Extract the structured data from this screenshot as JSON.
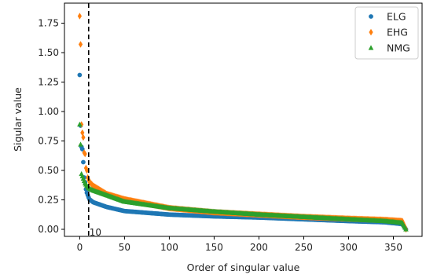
{
  "chart_data": {
    "type": "scatter",
    "title": "",
    "xlabel": "Order of singular value",
    "ylabel": "Sigular value",
    "xlim": [
      -17,
      382
    ],
    "ylim": [
      -0.06,
      1.92
    ],
    "xticks": [
      0,
      50,
      100,
      150,
      200,
      250,
      300,
      350
    ],
    "yticks": [
      0.0,
      0.25,
      0.5,
      0.75,
      1.0,
      1.25,
      1.5,
      1.75
    ],
    "xtick_labels": [
      "0",
      "50",
      "100",
      "150",
      "200",
      "250",
      "300",
      "350"
    ],
    "ytick_labels": [
      "0.00",
      "0.25",
      "0.50",
      "0.75",
      "1.00",
      "1.25",
      "1.50",
      "1.75"
    ],
    "grid": false,
    "legend_position": "top-right",
    "n_points": 365,
    "vline": {
      "x": 10,
      "style": "dashed",
      "color": "#000000",
      "label": "10"
    },
    "series": [
      {
        "name": "ELG",
        "marker": "circle",
        "color": "#1f77b4",
        "head": [
          1.31,
          0.88,
          0.7,
          0.68,
          0.57,
          0.44,
          0.4,
          0.34,
          0.31,
          0.29,
          0.27
        ],
        "profile": [
          [
            10,
            0.26
          ],
          [
            15,
            0.23
          ],
          [
            30,
            0.19
          ],
          [
            50,
            0.155
          ],
          [
            100,
            0.125
          ],
          [
            150,
            0.11
          ],
          [
            200,
            0.1
          ],
          [
            250,
            0.085
          ],
          [
            300,
            0.07
          ],
          [
            340,
            0.06
          ],
          [
            360,
            0.045
          ],
          [
            364,
            0.0
          ]
        ]
      },
      {
        "name": "EHG",
        "marker": "diamond",
        "color": "#ff7f0e",
        "head": [
          1.81,
          1.57,
          0.89,
          0.82,
          0.78,
          0.65,
          0.64,
          0.52,
          0.5,
          0.44,
          0.42
        ],
        "profile": [
          [
            10,
            0.41
          ],
          [
            15,
            0.37
          ],
          [
            30,
            0.3
          ],
          [
            50,
            0.255
          ],
          [
            100,
            0.18
          ],
          [
            150,
            0.145
          ],
          [
            200,
            0.125
          ],
          [
            250,
            0.105
          ],
          [
            300,
            0.09
          ],
          [
            340,
            0.08
          ],
          [
            360,
            0.07
          ],
          [
            364,
            0.0
          ]
        ]
      },
      {
        "name": "NMG",
        "marker": "triangle",
        "color": "#2ca02c",
        "head": [
          0.89,
          0.72,
          0.47,
          0.45,
          0.43,
          0.41,
          0.39,
          0.38,
          0.37,
          0.36,
          0.35
        ],
        "profile": [
          [
            10,
            0.35
          ],
          [
            15,
            0.33
          ],
          [
            30,
            0.29
          ],
          [
            50,
            0.235
          ],
          [
            100,
            0.18
          ],
          [
            150,
            0.15
          ],
          [
            200,
            0.125
          ],
          [
            250,
            0.105
          ],
          [
            300,
            0.085
          ],
          [
            340,
            0.07
          ],
          [
            360,
            0.055
          ],
          [
            364,
            0.0
          ]
        ]
      }
    ]
  }
}
